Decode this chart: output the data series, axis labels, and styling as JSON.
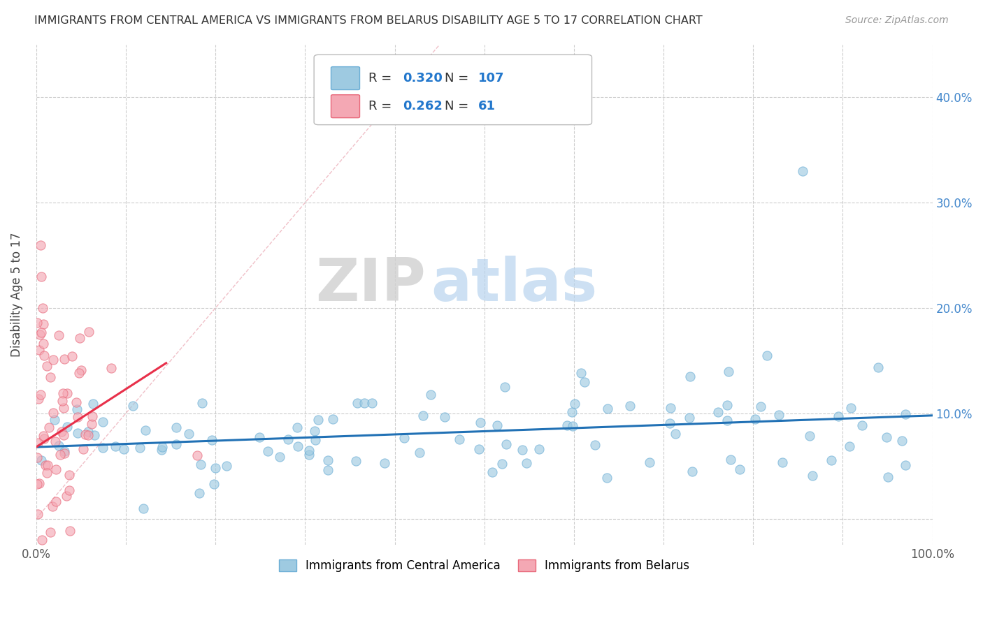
{
  "title": "IMMIGRANTS FROM CENTRAL AMERICA VS IMMIGRANTS FROM BELARUS DISABILITY AGE 5 TO 17 CORRELATION CHART",
  "source": "Source: ZipAtlas.com",
  "ylabel": "Disability Age 5 to 17",
  "xlim": [
    0.0,
    1.0
  ],
  "ylim": [
    -0.025,
    0.45
  ],
  "xticks": [
    0.0,
    0.1,
    0.2,
    0.3,
    0.4,
    0.5,
    0.6,
    0.7,
    0.8,
    0.9,
    1.0
  ],
  "xticklabels": [
    "0.0%",
    "",
    "",
    "",
    "",
    "",
    "",
    "",
    "",
    "",
    "100.0%"
  ],
  "yticks": [
    0.0,
    0.1,
    0.2,
    0.3,
    0.4
  ],
  "yticklabels_right": [
    "",
    "10.0%",
    "20.0%",
    "30.0%",
    "40.0%"
  ],
  "series1_color": "#6baed6",
  "series1_color_fill": "#9ecae1",
  "series2_color": "#e8687a",
  "series2_color_fill": "#f4a8b4",
  "trend1_color": "#2171b5",
  "trend2_color": "#e8304a",
  "diag_color": "#f0c0c8",
  "legend_label1": "Immigrants from Central America",
  "legend_label2": "Immigrants from Belarus",
  "R1": "0.320",
  "N1": "107",
  "R2": "0.262",
  "N2": "61",
  "background_color": "#ffffff",
  "grid_color": "#cccccc",
  "seed": 42,
  "n1": 107,
  "n2": 61,
  "trend1_slope": 0.03,
  "trend1_intercept": 0.068,
  "trend2_slope": 0.55,
  "trend2_intercept": 0.068
}
